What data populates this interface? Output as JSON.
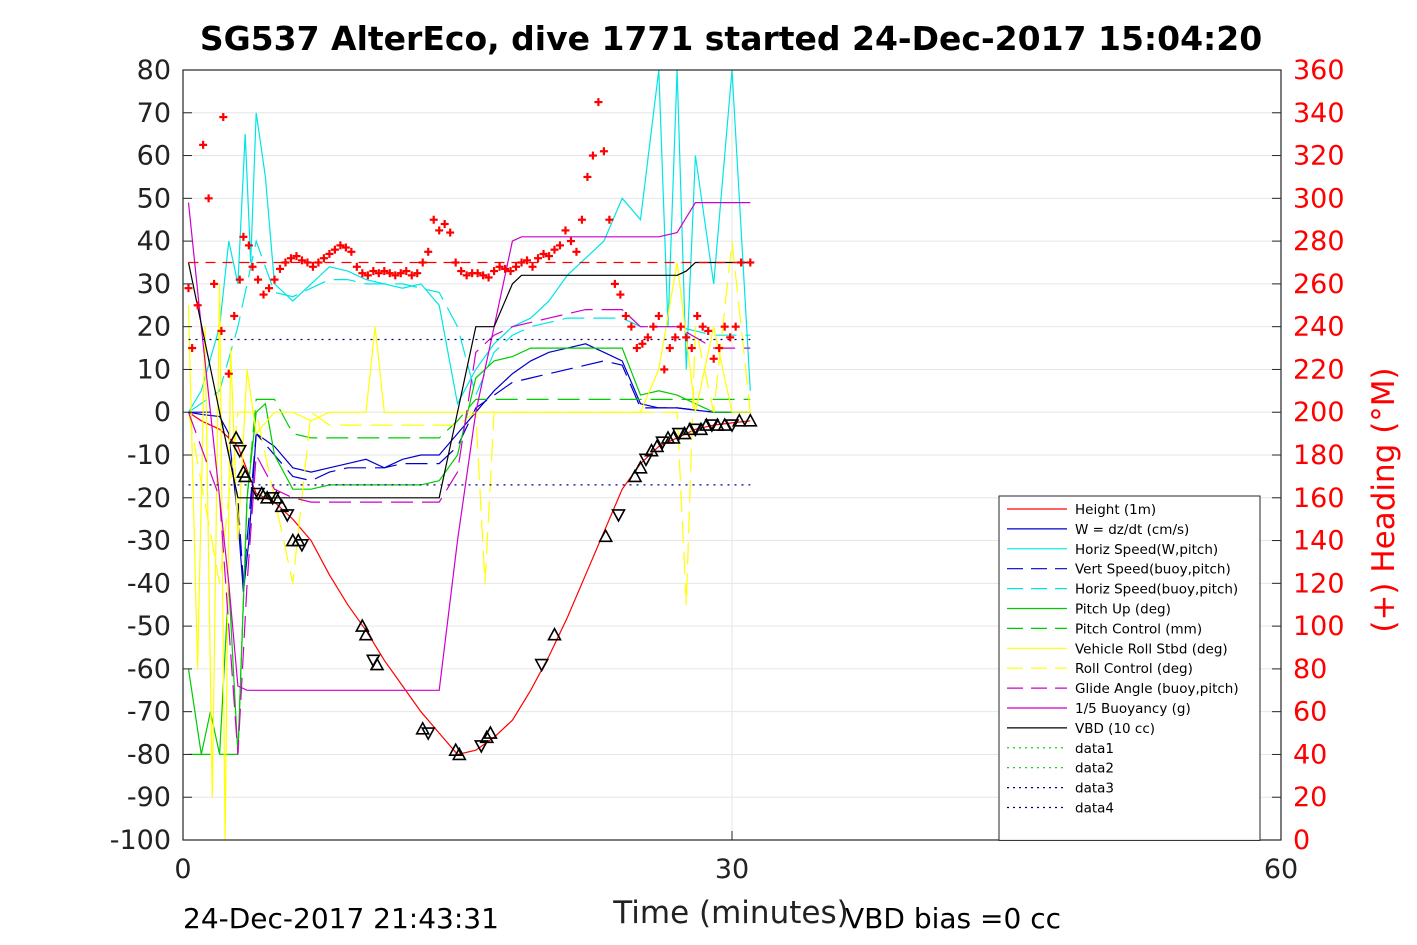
{
  "chart_data": {
    "type": "line",
    "title": "SG537 AlterEco, dive 1771 started 24-Dec-2017 15:04:20",
    "xlabel": "Time (minutes)",
    "ylabel_right": "(+) Heading (°M)",
    "xlim": [
      0,
      60
    ],
    "ylim": [
      -100,
      80
    ],
    "ylim_right": [
      0,
      360
    ],
    "x_ticks": [
      0,
      30,
      60
    ],
    "y_ticks": [
      80,
      70,
      60,
      50,
      40,
      30,
      20,
      10,
      0,
      -10,
      -20,
      -30,
      -40,
      -50,
      -60,
      -70,
      -80,
      -90,
      -100
    ],
    "y_ticks_right": [
      360,
      340,
      320,
      300,
      280,
      260,
      240,
      220,
      200,
      180,
      160,
      140,
      120,
      100,
      80,
      60,
      40,
      20,
      0
    ],
    "grid": true,
    "legend_position": "lower-right",
    "footer_left": "24-Dec-2017 21:43:31",
    "footer_right": "VBD bias =0 cc",
    "colors": {
      "red": "#ff0000",
      "blue": "#0000cc",
      "cyan": "#00e5e5",
      "green": "#00cc00",
      "yellow": "#ffff00",
      "magenta": "#cc00cc",
      "black": "#000000",
      "navy": "#000080"
    },
    "series": [
      {
        "name": "Height (1m)",
        "color": "#ff0000",
        "style": "solid",
        "x": [
          0.3,
          1,
          2,
          3,
          4,
          5,
          6,
          7,
          8,
          9,
          10,
          11,
          12,
          13,
          14,
          15,
          16,
          17,
          18,
          19,
          20,
          21,
          22,
          23,
          24,
          25,
          26,
          27,
          28,
          29,
          30,
          31
        ],
        "y": [
          0,
          -2,
          -4,
          -8,
          -19,
          -21,
          -25,
          -30,
          -38,
          -45,
          -51,
          -58,
          -64,
          -70,
          -75,
          -80,
          -79,
          -76,
          -72,
          -65,
          -57,
          -48,
          -38,
          -28,
          -18,
          -12,
          -8,
          -6,
          -4,
          -3,
          -2.5,
          -2
        ]
      },
      {
        "name": "W = dz/dt (cm/s)",
        "color": "#0000cc",
        "style": "solid",
        "x": [
          0.3,
          1,
          2,
          2.5,
          3,
          3.3,
          3.6,
          4,
          5,
          6,
          7,
          8,
          9,
          10,
          11,
          12,
          13,
          14,
          15,
          16,
          17,
          18,
          19,
          20,
          21,
          22,
          23,
          24,
          25,
          26,
          27,
          28,
          29,
          30,
          31
        ],
        "y": [
          0,
          -0.5,
          -1,
          -5,
          -25,
          -42,
          -30,
          -5,
          -8,
          -13,
          -14,
          -13,
          -12,
          -11,
          -13,
          -11,
          -10,
          -10,
          -5,
          0,
          5,
          9,
          12,
          14,
          15,
          16,
          14,
          12,
          2,
          1,
          1,
          0.5,
          0,
          0,
          0
        ]
      },
      {
        "name": "Horiz Speed(W,pitch)",
        "color": "#00e5e5",
        "style": "solid",
        "x": [
          0.3,
          1,
          2,
          2.5,
          3,
          3.4,
          3.7,
          4,
          4.5,
          5,
          6,
          7,
          8,
          9,
          10,
          11,
          12,
          13,
          14,
          15,
          16,
          17,
          18,
          19,
          20,
          21,
          22,
          23,
          24,
          25,
          26,
          26.5,
          27,
          27.5,
          28,
          29,
          30,
          31
        ],
        "y": [
          0,
          5,
          20,
          40,
          30,
          65,
          35,
          70,
          55,
          30,
          26,
          30,
          34,
          33,
          31,
          30,
          29,
          30,
          25,
          2,
          10,
          16,
          20,
          22,
          26,
          32,
          36,
          40,
          50,
          45,
          80,
          20,
          80,
          10,
          60,
          30,
          80,
          5
        ]
      },
      {
        "name": "Vert Speed(buoy,pitch)",
        "color": "#0000cc",
        "style": "dash",
        "x": [
          0.3,
          2,
          3,
          3.3,
          4,
          5,
          6,
          7,
          8,
          9,
          10,
          11,
          12,
          13,
          14,
          15,
          16,
          17,
          18,
          19,
          20,
          21,
          22,
          23,
          24,
          25,
          27,
          29,
          31
        ],
        "y": [
          0,
          0,
          -20,
          -40,
          -5,
          -10,
          -15,
          -16,
          -14,
          -13,
          -13,
          -13,
          -12,
          -12,
          -12,
          -8,
          1,
          4,
          7,
          8,
          9,
          10,
          11,
          12,
          11,
          1,
          1,
          0,
          0
        ]
      },
      {
        "name": "Horiz Speed(buoy,pitch)",
        "color": "#00e5e5",
        "style": "dash",
        "x": [
          0.3,
          2,
          3,
          3.5,
          4,
          5,
          6,
          7,
          8,
          9,
          10,
          11,
          12,
          13,
          14,
          15,
          16,
          17,
          18,
          19,
          20,
          21,
          22,
          23,
          24,
          25,
          27,
          29,
          31
        ],
        "y": [
          0,
          5,
          20,
          30,
          40,
          28,
          27,
          29,
          31,
          31,
          30,
          30,
          30,
          29,
          28,
          20,
          4,
          14,
          18,
          20,
          21,
          22,
          22,
          22,
          22,
          20,
          20,
          18,
          18
        ]
      },
      {
        "name": "Pitch Up (deg)",
        "color": "#00cc00",
        "style": "solid",
        "x": [
          0.3,
          1,
          1.5,
          2,
          2.5,
          3,
          3.5,
          4,
          4.5,
          5,
          6,
          7,
          8,
          9,
          10,
          11,
          12,
          13,
          14,
          15,
          16,
          17,
          18,
          19,
          20,
          21,
          22,
          23,
          24,
          25,
          26,
          27,
          28,
          29,
          30,
          31
        ],
        "y": [
          -60,
          -80,
          -70,
          -80,
          -40,
          -80,
          -20,
          0,
          2,
          -10,
          -18,
          -18,
          -17,
          -17,
          -17,
          -17,
          -17,
          -17,
          -16,
          -10,
          8,
          12,
          13,
          15,
          15,
          15,
          15,
          15,
          15,
          4,
          5,
          4,
          2,
          0,
          0,
          0
        ]
      },
      {
        "name": "Pitch Control (mm)",
        "color": "#00cc00",
        "style": "dash",
        "x": [
          0.3,
          2,
          3,
          3.5,
          4,
          5,
          6,
          7,
          8,
          9,
          10,
          11,
          12,
          13,
          14,
          15,
          16,
          17,
          18,
          19,
          20,
          21,
          22,
          23,
          24,
          25,
          27,
          29,
          31
        ],
        "y": [
          -80,
          -80,
          -80,
          -20,
          3,
          3,
          -5,
          -6,
          -6,
          -6,
          -6,
          -6,
          -6,
          -6,
          -6,
          -2,
          3,
          3,
          3,
          3,
          3,
          3,
          3,
          3,
          3,
          3,
          3,
          3,
          3
        ]
      },
      {
        "name": "Vehicle Roll Stbd (deg)",
        "color": "#ffff00",
        "style": "solid",
        "x": [
          0.3,
          0.8,
          1.2,
          1.6,
          2,
          2.3,
          2.6,
          3,
          3.5,
          4,
          5,
          6,
          7,
          8,
          9,
          10,
          10.5,
          11,
          12,
          13,
          14,
          15,
          16,
          17,
          18,
          19,
          20,
          21,
          22,
          23,
          24,
          25,
          26,
          27,
          28,
          29,
          30,
          31
        ],
        "y": [
          25,
          -60,
          20,
          -90,
          30,
          -100,
          15,
          -30,
          10,
          -5,
          0,
          0,
          -2,
          0,
          0,
          0,
          20,
          0,
          0,
          0,
          0,
          0,
          0,
          0,
          0,
          0,
          0,
          0,
          0,
          0,
          0,
          0,
          10,
          35,
          0,
          20,
          0,
          0
        ]
      },
      {
        "name": "Roll Control (deg)",
        "color": "#ffff00",
        "style": "dash",
        "x": [
          0.3,
          2,
          3,
          4,
          5,
          6,
          7,
          8,
          9,
          10,
          11,
          12,
          13,
          14,
          15,
          16,
          16.5,
          17,
          18,
          19,
          20,
          21,
          22,
          23,
          24,
          25,
          26,
          27,
          27.5,
          28,
          29,
          30,
          31
        ],
        "y": [
          0,
          -40,
          0,
          0,
          -20,
          -40,
          0,
          -3,
          -3,
          -3,
          -3,
          -3,
          -3,
          -3,
          -3,
          0,
          -40,
          0,
          0,
          0,
          0,
          0,
          0,
          0,
          0,
          0,
          0,
          0,
          -45,
          20,
          0,
          40,
          0
        ]
      },
      {
        "name": "Glide Angle (buoy,pitch)",
        "color": "#cc00cc",
        "style": "dash",
        "x": [
          0.3,
          2,
          3,
          3.5,
          4,
          5,
          6,
          7,
          8,
          9,
          10,
          11,
          12,
          13,
          14,
          15,
          16,
          17,
          18,
          19,
          20,
          21,
          22,
          23,
          24,
          25,
          27,
          29,
          31
        ],
        "y": [
          0,
          -20,
          -80,
          -40,
          -10,
          -18,
          -20,
          -21,
          -21,
          -21,
          -21,
          -21,
          -21,
          -21,
          -21,
          -14,
          14,
          18,
          20,
          21,
          22,
          23,
          24,
          24,
          24,
          20,
          20,
          15,
          15
        ]
      },
      {
        "name": "1/5 Buoyancy (g)",
        "color": "#cc00cc",
        "style": "solid",
        "x": [
          0.3,
          1,
          2,
          2.5,
          3,
          3.5,
          4,
          6,
          8,
          10,
          12,
          13,
          14,
          15,
          16,
          17,
          18,
          18.5,
          20,
          22,
          24,
          26,
          27,
          28,
          29,
          31
        ],
        "y": [
          49,
          20,
          -20,
          -40,
          -64,
          -65,
          -65,
          -65,
          -65,
          -65,
          -65,
          -65,
          -65,
          -30,
          0,
          20,
          40,
          41,
          41,
          41,
          41,
          41,
          42,
          49,
          49,
          49
        ]
      },
      {
        "name": "VBD (10 cc)",
        "color": "#000000",
        "style": "solid",
        "x": [
          0.3,
          2,
          2.5,
          3,
          4,
          6,
          8,
          10,
          12,
          13,
          14,
          15,
          16,
          17,
          18,
          18.5,
          20,
          22,
          24,
          25,
          26,
          27,
          27.5,
          28,
          29,
          30,
          31
        ],
        "y": [
          35,
          0,
          -10,
          -20,
          -20,
          -20,
          -20,
          -20,
          -20,
          -20,
          -20,
          0,
          20,
          20,
          30,
          32,
          32,
          32,
          32,
          32,
          32,
          32,
          33,
          35,
          35,
          35,
          35
        ]
      },
      {
        "name": "data1",
        "color": "#00cc00",
        "style": "dot",
        "x": [],
        "y": []
      },
      {
        "name": "data2",
        "color": "#00cc00",
        "style": "dot",
        "x": [],
        "y": []
      },
      {
        "name": "data3",
        "color": "#000080",
        "style": "dot",
        "x": [
          0.3,
          31
        ],
        "y": [
          17,
          17
        ]
      },
      {
        "name": "data4",
        "color": "#000080",
        "style": "dot",
        "x": [
          0.3,
          31
        ],
        "y": [
          -17,
          -17
        ]
      }
    ],
    "heading_dashed_line": {
      "color": "#ff0000",
      "y_right": 270,
      "x": [
        0.3,
        31
      ]
    },
    "heading_points": {
      "color": "#ff0000",
      "marker": "+",
      "x": [
        0.3,
        0.5,
        0.8,
        1.1,
        1.4,
        1.7,
        2.1,
        2.2,
        2.5,
        2.8,
        3.1,
        3.3,
        3.6,
        3.8,
        4.1,
        4.4,
        4.7,
        5.0,
        5.3,
        5.6,
        5.9,
        6.2,
        6.5,
        6.8,
        7.1,
        7.4,
        7.7,
        8.0,
        8.3,
        8.6,
        8.9,
        9.2,
        9.5,
        9.8,
        10.1,
        10.4,
        10.7,
        11.0,
        11.3,
        11.6,
        11.9,
        12.2,
        12.5,
        12.8,
        13.1,
        13.4,
        13.7,
        14.0,
        14.3,
        14.6,
        14.9,
        15.2,
        15.5,
        15.8,
        16.1,
        16.4,
        16.7,
        17.0,
        17.3,
        17.6,
        17.9,
        18.2,
        18.5,
        18.8,
        19.1,
        19.4,
        19.7,
        20.0,
        20.3,
        20.6,
        20.9,
        21.2,
        21.5,
        21.8,
        22.1,
        22.4,
        22.7,
        23.0,
        23.3,
        23.6,
        23.9,
        24.2,
        24.5,
        24.8,
        25.1,
        25.4,
        25.7,
        26.0,
        26.3,
        26.6,
        26.9,
        27.2,
        27.5,
        27.8,
        28.1,
        28.4,
        28.7,
        29.0,
        29.3,
        29.6,
        29.9,
        30.2,
        30.5,
        31.0
      ],
      "y_right": [
        258,
        230,
        250,
        325,
        300,
        260,
        238,
        338,
        218,
        245,
        262,
        282,
        278,
        268,
        262,
        255,
        258,
        262,
        267,
        270,
        272,
        273,
        271,
        270,
        268,
        270,
        272,
        274,
        276,
        278,
        277,
        275,
        268,
        265,
        264,
        266,
        265,
        266,
        265,
        264,
        265,
        266,
        264,
        265,
        270,
        275,
        290,
        285,
        288,
        284,
        270,
        266,
        264,
        265,
        265,
        264,
        263,
        266,
        268,
        267,
        266,
        268,
        270,
        271,
        268,
        272,
        274,
        273,
        276,
        278,
        285,
        280,
        275,
        290,
        310,
        320,
        345,
        322,
        290,
        260,
        255,
        245,
        240,
        230,
        232,
        235,
        240,
        245,
        220,
        230,
        235,
        240,
        235,
        230,
        245,
        240,
        238,
        225,
        230,
        240,
        235,
        240,
        270,
        270
      ]
    },
    "depth_markers": {
      "color": "#000000",
      "x": [
        2.9,
        3.1,
        3.3,
        3.4,
        4.1,
        4.3,
        4.6,
        4.9,
        5.1,
        5.4,
        5.7,
        6.0,
        6.3,
        6.5,
        9.8,
        10.0,
        10.4,
        10.6,
        13.1,
        13.4,
        14.9,
        15.1,
        16.3,
        16.6,
        16.8,
        19.6,
        20.3,
        23.1,
        23.8,
        24.7,
        25.0,
        25.3,
        25.6,
        25.9,
        26.2,
        26.5,
        26.8,
        27.1,
        27.4,
        27.7,
        28.0,
        28.3,
        28.6,
        28.9,
        29.2,
        29.6,
        30.0,
        30.4,
        31.0
      ],
      "y": [
        -6,
        -9,
        -14,
        -15,
        -19,
        -19,
        -20,
        -20,
        -20,
        -22,
        -24,
        -30,
        -30,
        -31,
        -50,
        -52,
        -58,
        -59,
        -74,
        -75,
        -79,
        -80,
        -78,
        -76,
        -75,
        -59,
        -52,
        -29,
        -24,
        -15,
        -13,
        -11,
        -9,
        -8,
        -7,
        -6,
        -6,
        -5,
        -5,
        -4,
        -4,
        -4,
        -3,
        -3,
        -3,
        -3,
        -3,
        -2,
        -2
      ]
    }
  }
}
